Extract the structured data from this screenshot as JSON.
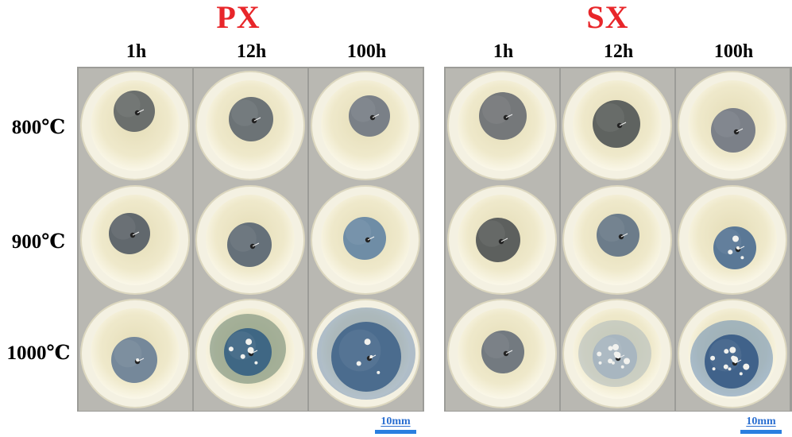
{
  "groups": [
    {
      "title": "PX",
      "cols": [
        "1h",
        "12h",
        "100h"
      ]
    },
    {
      "title": "SX",
      "cols": [
        "1h",
        "12h",
        "100h"
      ]
    }
  ],
  "rows": [
    "800℃",
    "900℃",
    "1000℃"
  ],
  "scale_bar": "10mm",
  "colors": {
    "title": "#e8262a",
    "scale_bar": "#2a7fe0",
    "crucible": "#efe9c8",
    "background": "#9c9c98"
  }
}
